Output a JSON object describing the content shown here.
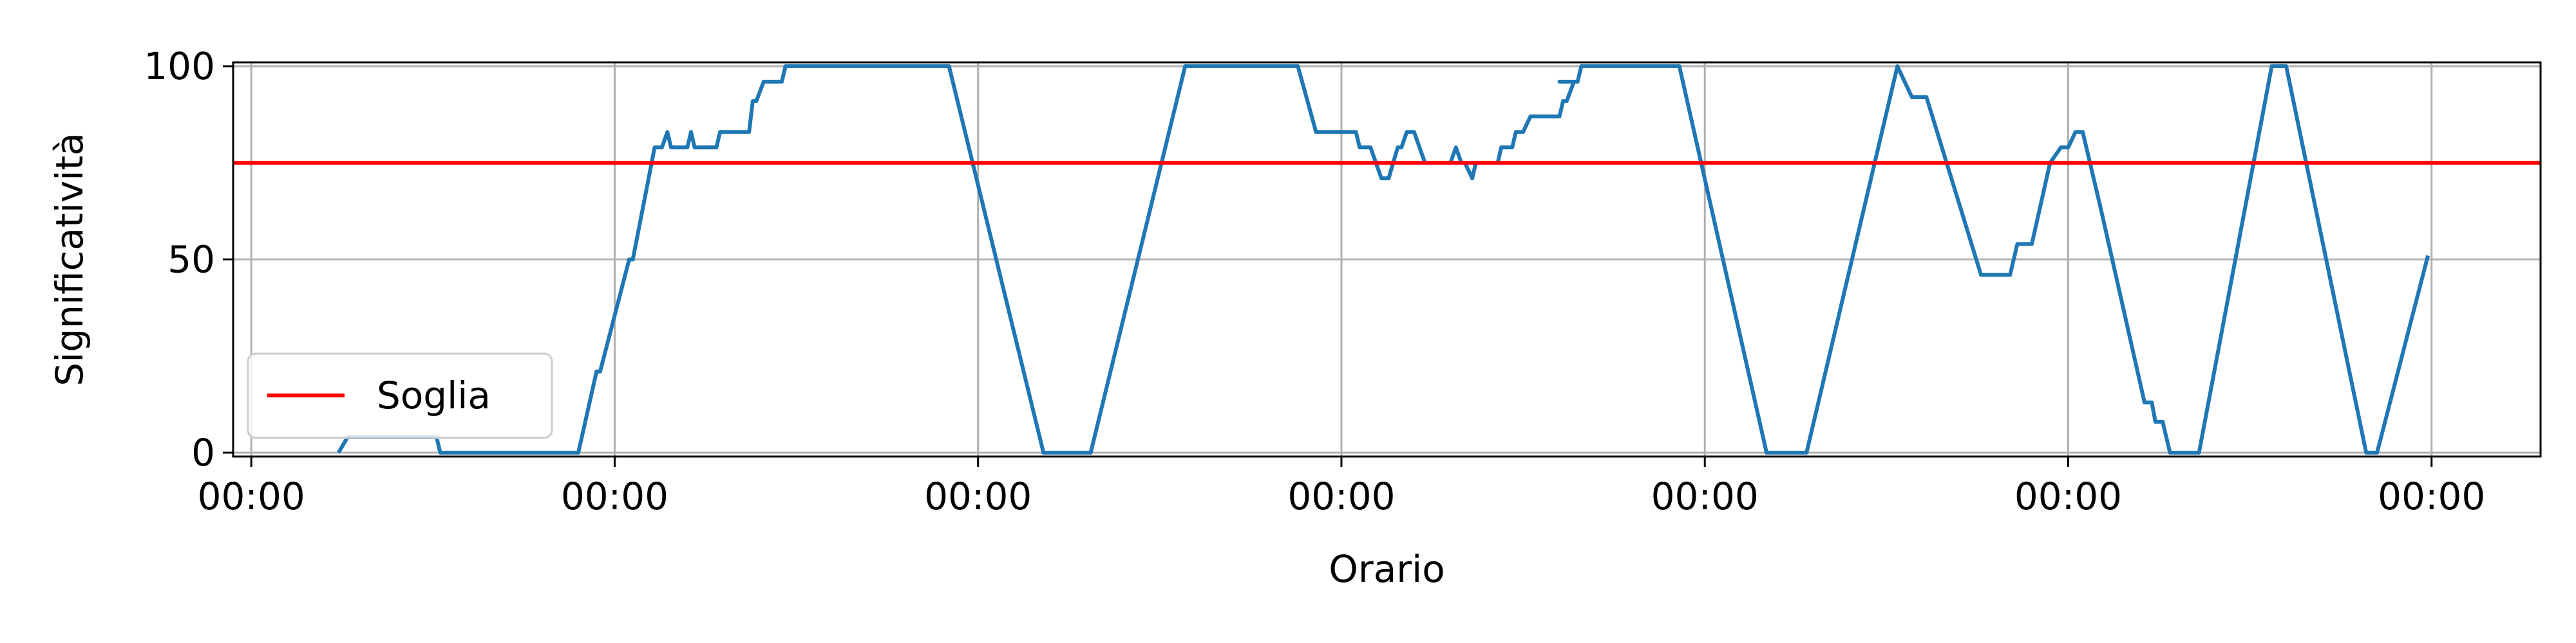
{
  "chart_data": {
    "type": "line",
    "title": "",
    "xlabel": "Orario",
    "ylabel": "Significatività",
    "xlim": [
      -0.05,
      6.3
    ],
    "ylim": [
      -1,
      101
    ],
    "grid": true,
    "legend_position": "lower-left",
    "xticks": [
      {
        "value": 0,
        "label": "00:00"
      },
      {
        "value": 1,
        "label": "00:00"
      },
      {
        "value": 2,
        "label": "00:00"
      },
      {
        "value": 3,
        "label": "00:00"
      },
      {
        "value": 4,
        "label": "00:00"
      },
      {
        "value": 5,
        "label": "00:00"
      },
      {
        "value": 6,
        "label": "00:00"
      }
    ],
    "yticks": [
      {
        "value": 0,
        "label": "0"
      },
      {
        "value": 50,
        "label": "50"
      },
      {
        "value": 100,
        "label": "100"
      }
    ],
    "series": [
      {
        "name": "",
        "color": "#1f77b4",
        "points": [
          [
            0.24,
            0
          ],
          [
            0.265,
            4
          ],
          [
            0.51,
            4
          ],
          [
            0.52,
            0
          ],
          [
            0.9,
            0
          ],
          [
            0.95,
            21
          ],
          [
            0.96,
            21
          ],
          [
            1.04,
            50
          ],
          [
            1.05,
            50
          ],
          [
            1.11,
            79
          ],
          [
            1.13,
            79
          ],
          [
            1.145,
            83
          ],
          [
            1.155,
            79
          ],
          [
            1.2,
            79
          ],
          [
            1.21,
            83
          ],
          [
            1.22,
            79
          ],
          [
            1.28,
            79
          ],
          [
            1.29,
            83
          ],
          [
            1.37,
            83
          ],
          [
            1.38,
            91
          ],
          [
            1.39,
            91
          ],
          [
            1.41,
            96
          ],
          [
            1.46,
            96
          ],
          [
            1.47,
            100
          ],
          [
            1.92,
            100
          ],
          [
            2.18,
            0
          ],
          [
            2.31,
            0
          ],
          [
            2.57,
            100
          ],
          [
            2.88,
            100
          ],
          [
            2.93,
            83
          ],
          [
            3.04,
            83
          ],
          [
            3.05,
            79
          ],
          [
            3.08,
            79
          ],
          [
            3.11,
            71
          ],
          [
            3.13,
            71
          ],
          [
            3.155,
            79
          ],
          [
            3.165,
            79
          ],
          [
            3.18,
            83
          ],
          [
            3.2,
            83
          ],
          [
            3.23,
            75
          ],
          [
            3.3,
            75
          ],
          [
            3.315,
            79
          ],
          [
            3.33,
            75
          ],
          [
            3.34,
            75
          ],
          [
            3.36,
            71
          ],
          [
            3.37,
            75
          ],
          [
            3.43,
            75
          ],
          [
            3.44,
            79
          ],
          [
            3.47,
            79
          ],
          [
            3.48,
            83
          ],
          [
            3.5,
            83
          ],
          [
            3.52,
            87
          ],
          [
            3.6,
            87
          ],
          [
            3.61,
            91
          ],
          [
            3.62,
            91
          ],
          [
            3.64,
            96
          ],
          [
            3.6,
            96
          ],
          [
            3.65,
            96
          ],
          [
            3.66,
            100
          ],
          [
            3.93,
            100
          ],
          [
            4.17,
            0
          ],
          [
            4.28,
            0
          ],
          [
            4.53,
            100
          ],
          [
            4.57,
            92
          ],
          [
            4.61,
            92
          ],
          [
            4.76,
            46
          ],
          [
            4.84,
            46
          ],
          [
            4.86,
            54
          ],
          [
            4.9,
            54
          ],
          [
            4.95,
            75
          ],
          [
            4.98,
            79
          ],
          [
            5.0,
            79
          ],
          [
            5.02,
            83
          ],
          [
            5.04,
            83
          ],
          [
            5.09,
            63
          ],
          [
            5.21,
            13
          ],
          [
            5.23,
            13
          ],
          [
            5.24,
            8
          ],
          [
            5.26,
            8
          ],
          [
            5.28,
            0
          ],
          [
            5.36,
            0
          ],
          [
            5.56,
            100
          ],
          [
            5.6,
            100
          ],
          [
            5.82,
            0
          ],
          [
            5.85,
            0
          ],
          [
            5.99,
            51
          ]
        ]
      },
      {
        "name": "Soglia",
        "color": "#ff0000",
        "points": [
          [
            -0.05,
            75
          ],
          [
            6.3,
            75
          ]
        ]
      }
    ]
  }
}
